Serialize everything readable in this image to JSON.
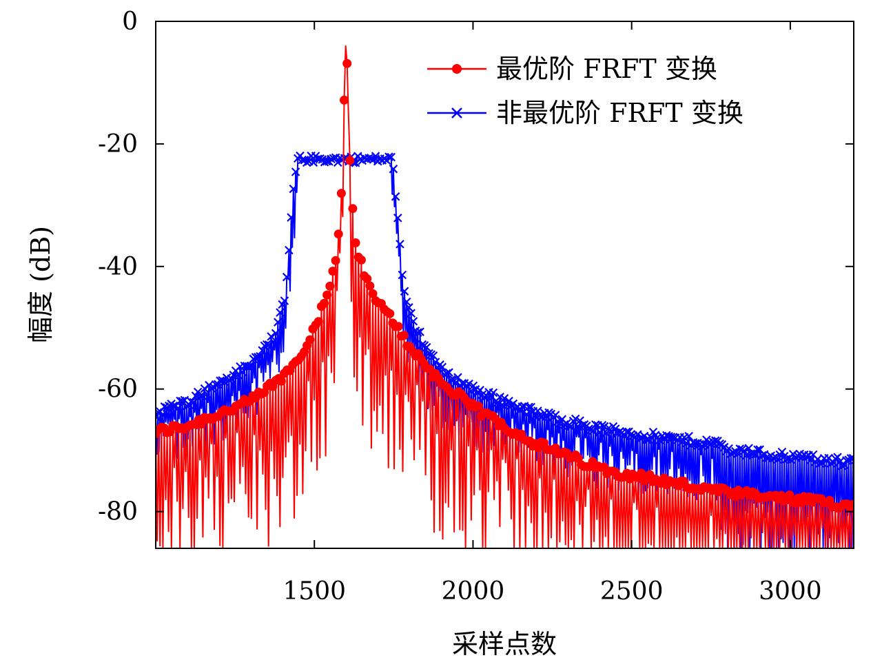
{
  "chart_data": {
    "type": "line",
    "title": "",
    "xlabel": "采样点数",
    "ylabel": "幅度 (dB)",
    "xlim": [
      1000,
      3200
    ],
    "ylim": [
      -86,
      0
    ],
    "x_ticks": [
      1500,
      2000,
      2500,
      3000
    ],
    "x_tick_labels": [
      "1500",
      "2000",
      "2500",
      "3000"
    ],
    "y_ticks": [
      0,
      -20,
      -40,
      -60,
      -80
    ],
    "y_tick_labels": [
      "0",
      "-20",
      "-40",
      "-60",
      "-80"
    ],
    "grid": false,
    "legend_position": "top-right",
    "series": [
      {
        "name": "最优阶 FRFT 变换",
        "color": "#ff0000",
        "marker": "circle",
        "x": [
          1000,
          1100,
          1200,
          1300,
          1400,
          1450,
          1500,
          1540,
          1570,
          1585,
          1595,
          1600,
          1605,
          1615,
          1630,
          1660,
          1700,
          1750,
          1800,
          1900,
          2000,
          2200,
          2400,
          2600,
          2800,
          3000,
          3200
        ],
        "y": [
          -67,
          -66,
          -64,
          -62,
          -58,
          -55,
          -50,
          -45,
          -38,
          -28,
          -10,
          0,
          -10,
          -28,
          -36,
          -42,
          -46,
          -49,
          -53,
          -59,
          -63,
          -69,
          -73,
          -75,
          -77,
          -78,
          -79
        ],
        "notch_min": -86
      },
      {
        "name": "非最优阶 FRFT 变换",
        "color": "#0000ff",
        "marker": "x",
        "x": [
          1000,
          1100,
          1200,
          1300,
          1380,
          1410,
          1430,
          1445,
          1500,
          1600,
          1700,
          1745,
          1760,
          1780,
          1810,
          1850,
          1900,
          2000,
          2200,
          2400,
          2600,
          2780,
          2800,
          3000,
          3200
        ],
        "y": [
          -64,
          -62,
          -59,
          -56,
          -51,
          -44,
          -30,
          -22.5,
          -22.5,
          -22.5,
          -22.5,
          -22.5,
          -30,
          -44,
          -49,
          -53,
          -57,
          -60,
          -64,
          -66.5,
          -68,
          -69,
          -70,
          -71,
          -72
        ],
        "notch_min": -86
      }
    ]
  }
}
